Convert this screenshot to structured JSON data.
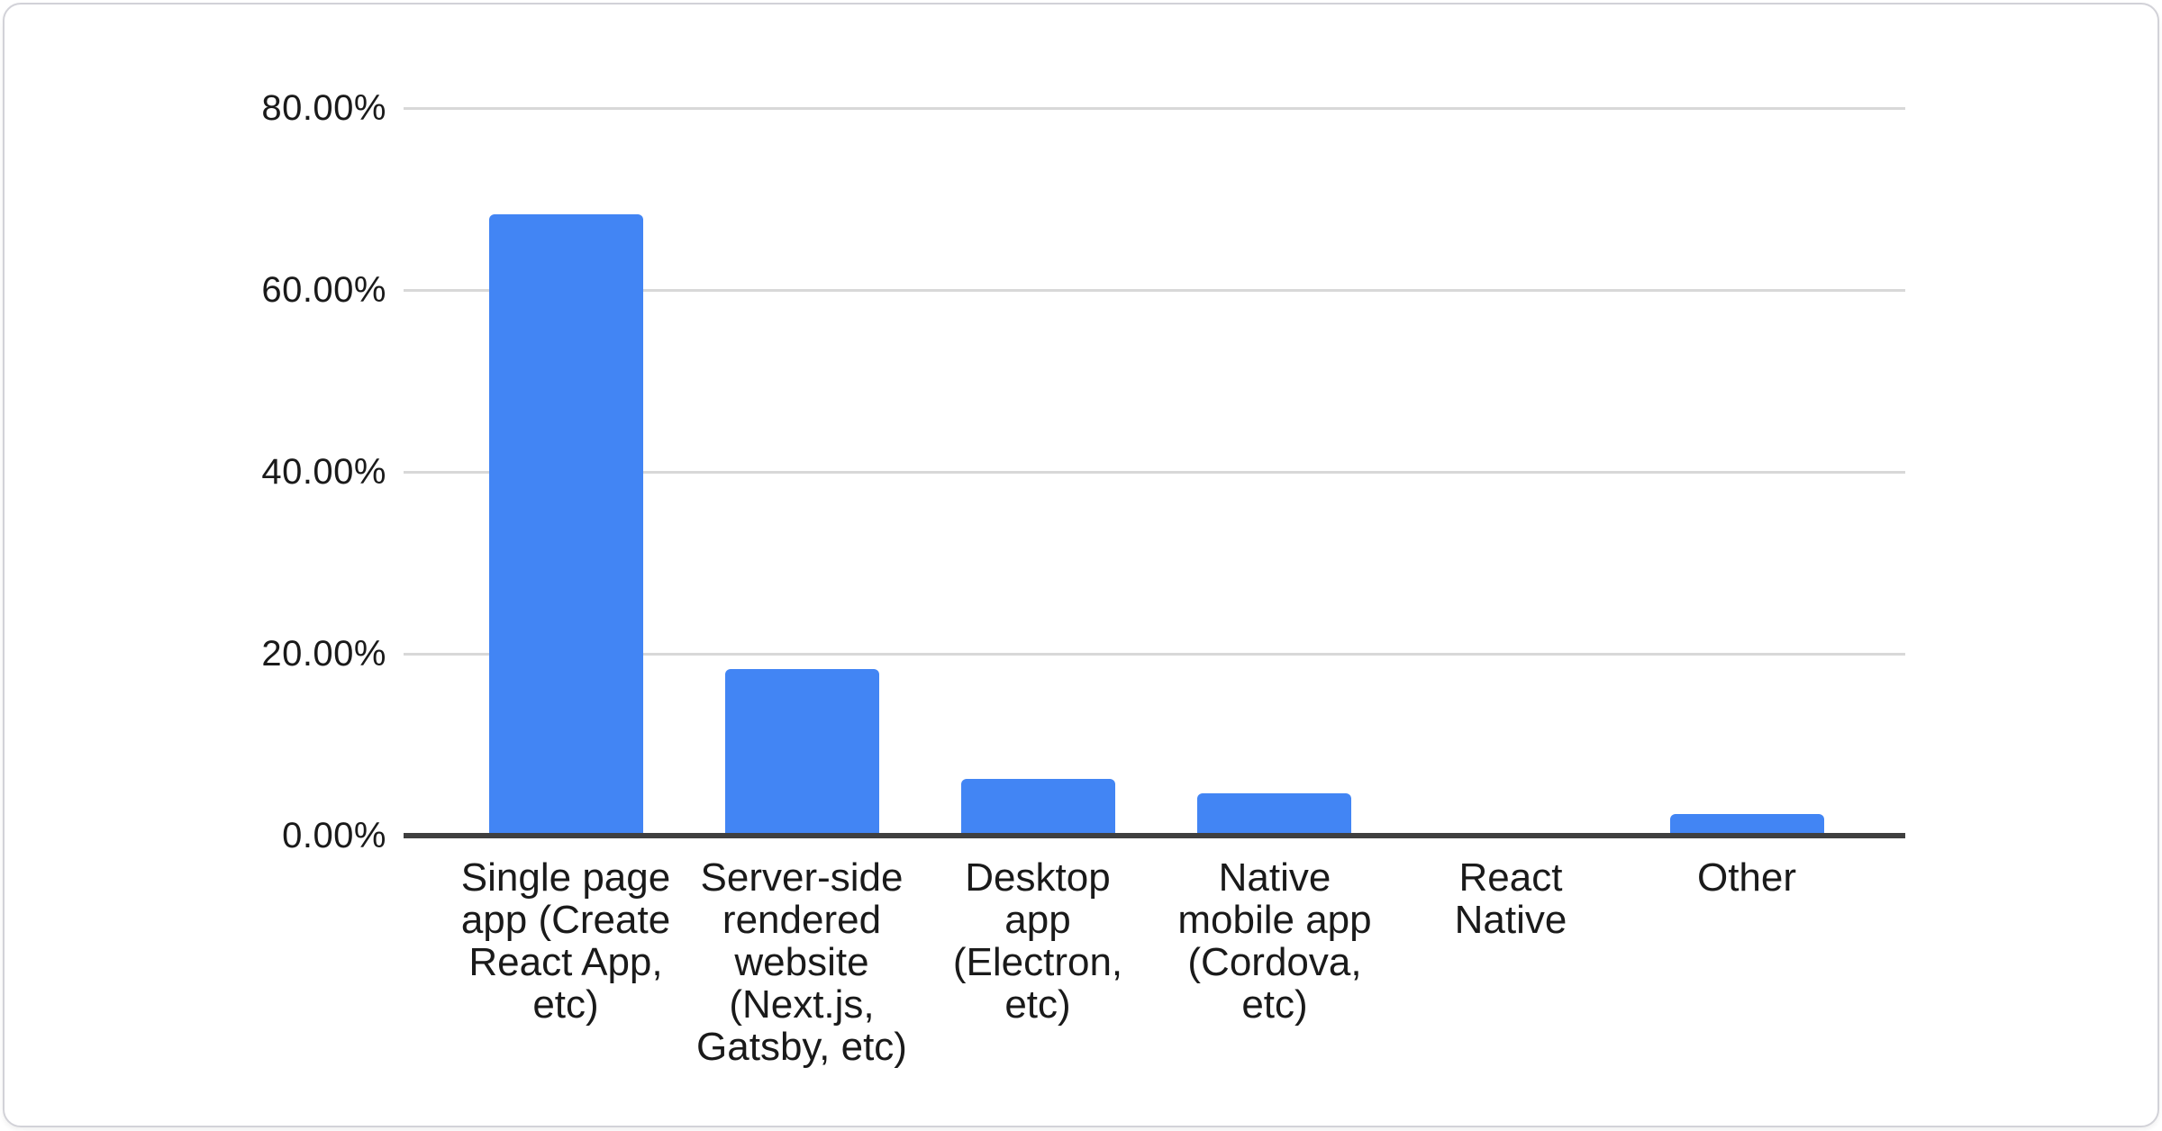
{
  "chart_data": {
    "type": "bar",
    "title": "",
    "xlabel": "",
    "ylabel": "",
    "categories": [
      "Single page app (Create React App, etc)",
      "Server-side rendered website (Next.js, Gatsby, etc)",
      "Desktop app (Electron, etc)",
      "Native mobile app (Cordova, etc)",
      "React Native",
      "Other"
    ],
    "category_lines": [
      [
        "Single page",
        "app (Create",
        "React App,",
        "etc)"
      ],
      [
        "Server-side",
        "rendered",
        "website",
        "(Next.js,",
        "Gatsby, etc)"
      ],
      [
        "Desktop",
        "app",
        "(Electron,",
        "etc)"
      ],
      [
        "Native",
        "mobile app",
        "(Cordova,",
        "etc)"
      ],
      [
        "React",
        "Native"
      ],
      [
        "Other"
      ]
    ],
    "values": [
      68.3,
      18.3,
      6.2,
      4.7,
      0,
      2.4
    ],
    "unit": "%",
    "ylim": [
      0,
      80
    ],
    "ytick_step": 20,
    "ytick_labels_top_to_bottom": [
      "80.00%",
      "60.00%",
      "40.00%",
      "20.00%",
      "0.00%"
    ],
    "grid": true,
    "legend": false,
    "colors": {
      "bar": "#4285f4",
      "gridline": "#d8d8d8",
      "axis_line": "#3f3f3f",
      "label": "#1a1a1a",
      "background": "#ffffff",
      "card_border": "#d2d2d8"
    }
  }
}
